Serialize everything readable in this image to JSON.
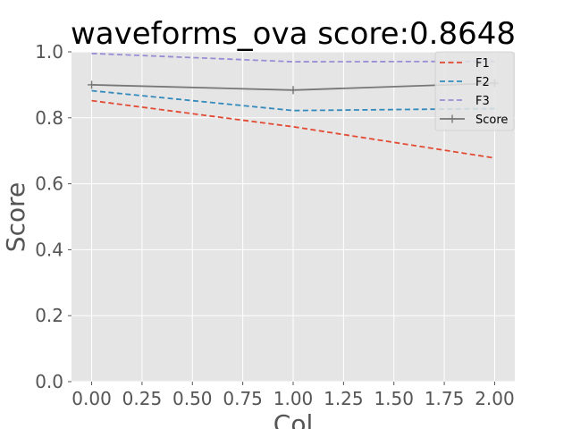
{
  "chart_data": {
    "type": "line",
    "title": "waveforms_ova score:0.8648",
    "xlabel": "Col",
    "ylabel": "Score",
    "xlim": [
      -0.1,
      2.1
    ],
    "ylim": [
      0.0,
      1.0
    ],
    "xticks": [
      0.0,
      0.25,
      0.5,
      0.75,
      1.0,
      1.25,
      1.5,
      1.75,
      2.0
    ],
    "xtick_labels": [
      "0.00",
      "0.25",
      "0.50",
      "0.75",
      "1.00",
      "1.25",
      "1.50",
      "1.75",
      "2.00"
    ],
    "yticks": [
      0.0,
      0.2,
      0.4,
      0.6,
      0.8,
      1.0
    ],
    "ytick_labels": [
      "0.0",
      "0.2",
      "0.4",
      "0.6",
      "0.8",
      "1.0"
    ],
    "grid": true,
    "legend_position": "top-right",
    "x": [
      0,
      1,
      2
    ],
    "series": [
      {
        "name": "F1",
        "values": [
          0.852,
          0.773,
          0.678
        ],
        "color": "#E24A33",
        "style": "dashed"
      },
      {
        "name": "F2",
        "values": [
          0.882,
          0.822,
          0.828
        ],
        "color": "#348ABD",
        "style": "dashed"
      },
      {
        "name": "F3",
        "values": [
          0.995,
          0.97,
          0.971
        ],
        "color": "#988ED5",
        "style": "dashed"
      },
      {
        "name": "Score",
        "values": [
          0.9,
          0.884,
          0.905
        ],
        "color": "#777777",
        "style": "solid",
        "marker": "plus"
      }
    ],
    "colors": {
      "plot_background": "#E5E5E5",
      "grid": "#FFFFFF",
      "tick_text": "#555555"
    }
  }
}
